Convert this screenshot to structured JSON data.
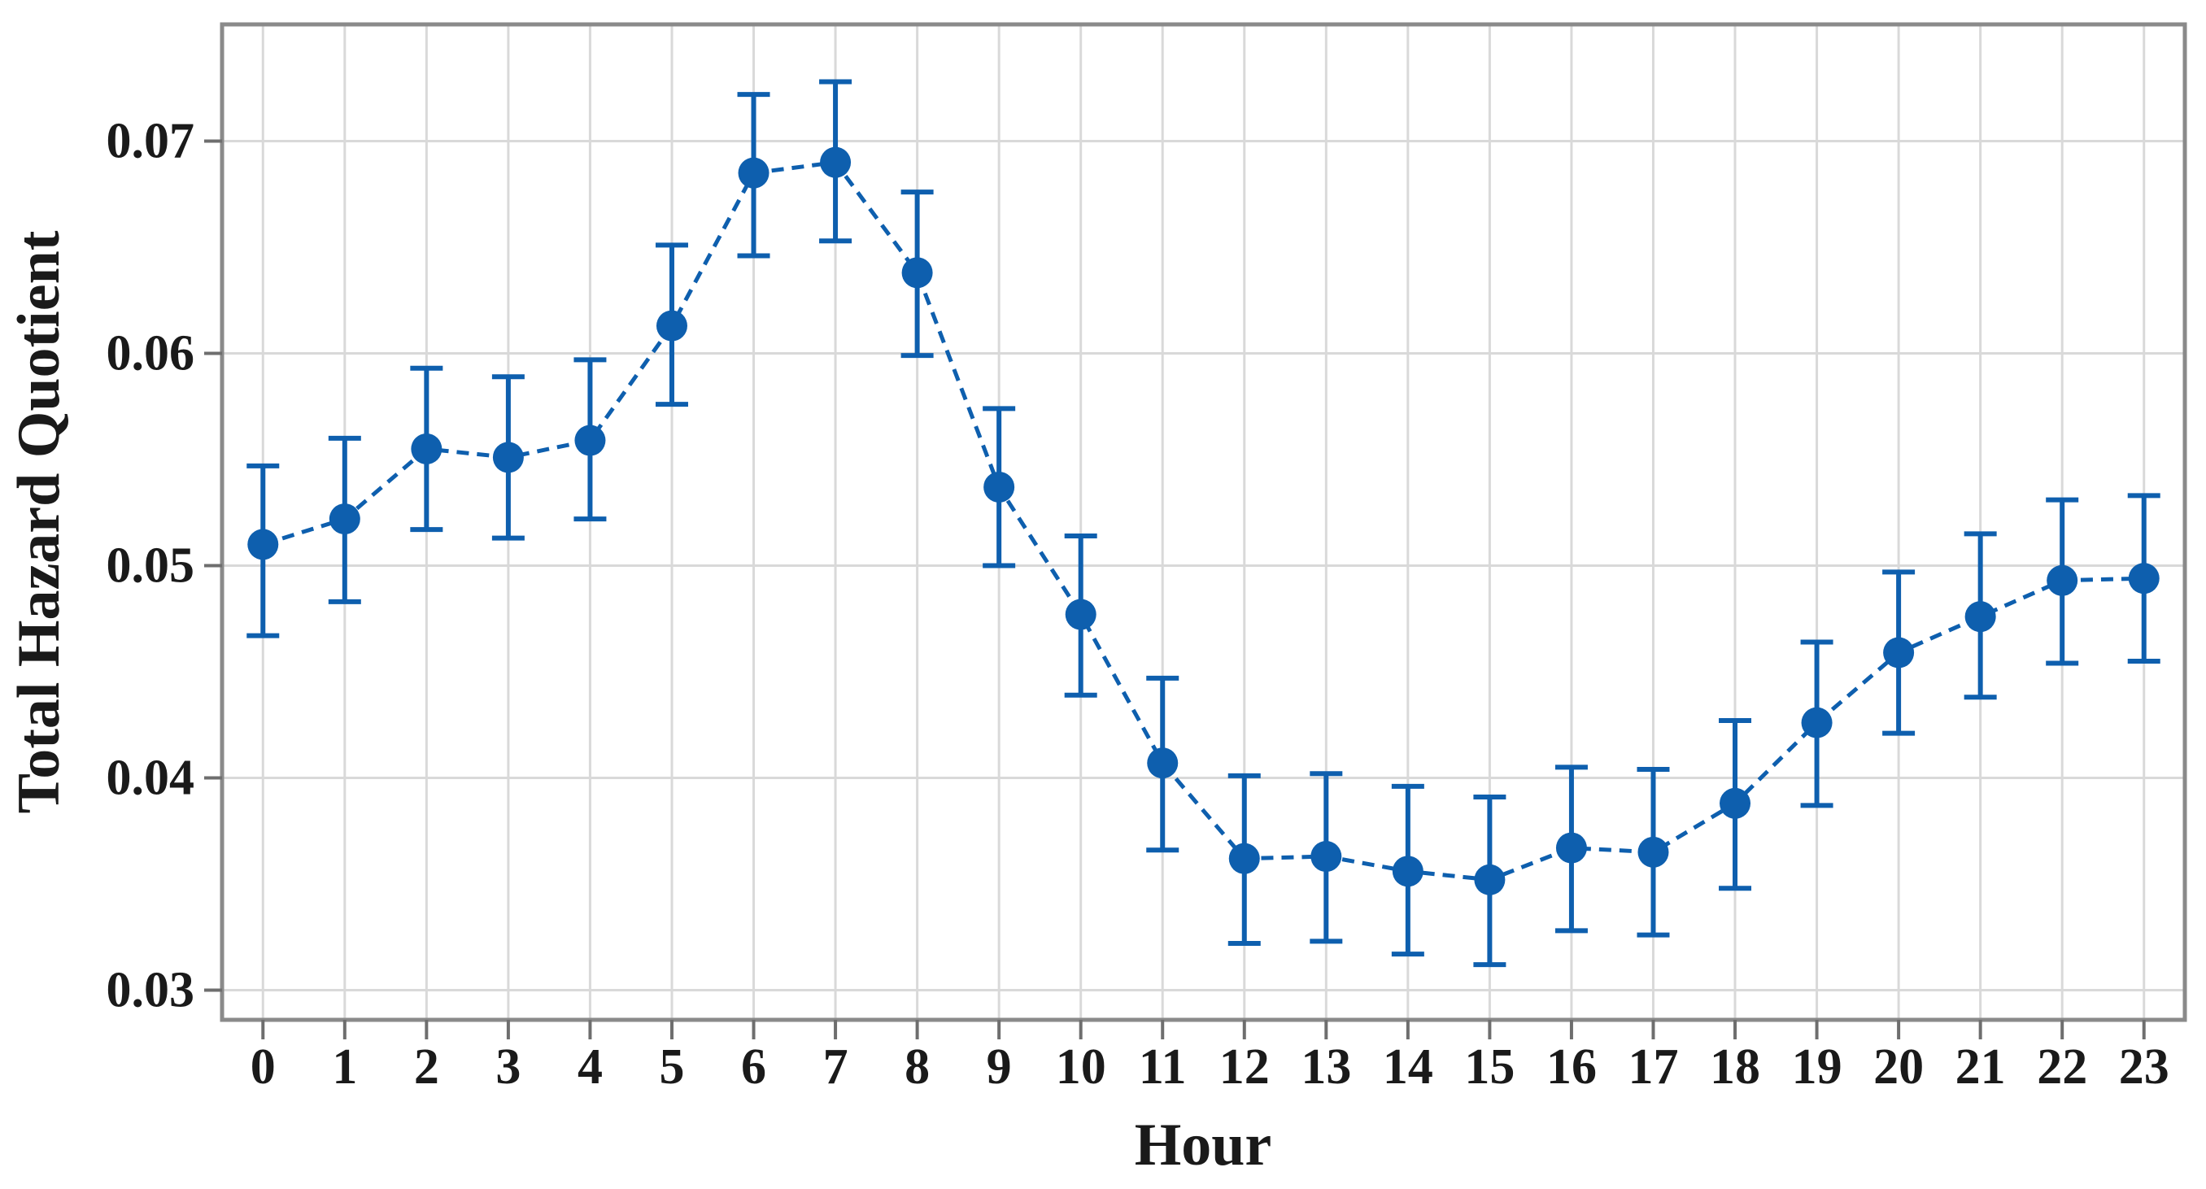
{
  "figure": {
    "background": "#ffffff"
  },
  "chart_data": {
    "type": "line",
    "title": "",
    "xlabel": "Hour",
    "ylabel": "Total Hazard Quotient",
    "categories": [
      "0",
      "1",
      "2",
      "3",
      "4",
      "5",
      "6",
      "7",
      "8",
      "9",
      "10",
      "11",
      "12",
      "13",
      "14",
      "15",
      "16",
      "17",
      "18",
      "19",
      "20",
      "21",
      "22",
      "23"
    ],
    "series": [
      {
        "name": "Total Hazard Quotient",
        "values": [
          0.051,
          0.0522,
          0.0555,
          0.0551,
          0.0559,
          0.0613,
          0.0685,
          0.069,
          0.0638,
          0.0537,
          0.0477,
          0.0407,
          0.0362,
          0.0363,
          0.0356,
          0.0352,
          0.0367,
          0.0365,
          0.0388,
          0.0426,
          0.0459,
          0.0476,
          0.0493,
          0.0494
        ],
        "err_low": [
          0.0467,
          0.0483,
          0.0517,
          0.0513,
          0.0522,
          0.0576,
          0.0646,
          0.0653,
          0.0599,
          0.05,
          0.0439,
          0.0366,
          0.0322,
          0.0323,
          0.0317,
          0.0312,
          0.0328,
          0.0326,
          0.0348,
          0.0387,
          0.0421,
          0.0438,
          0.0454,
          0.0455
        ],
        "err_high": [
          0.0547,
          0.056,
          0.0593,
          0.0589,
          0.0597,
          0.0651,
          0.0722,
          0.0728,
          0.0676,
          0.0574,
          0.0514,
          0.0447,
          0.0401,
          0.0402,
          0.0396,
          0.0391,
          0.0405,
          0.0404,
          0.0427,
          0.0464,
          0.0497,
          0.0515,
          0.0531,
          0.0533
        ]
      }
    ],
    "ylim": [
      0.0286,
      0.0755
    ],
    "yticks": {
      "values": [
        0.07,
        0.06,
        0.05,
        0.04,
        0.03
      ],
      "labels": [
        "0.07",
        "0.06",
        "0.05",
        "0.04",
        "0.03"
      ]
    },
    "grid": "both",
    "legend_position": "none",
    "marker": "circle",
    "line_style": "dashed",
    "error_bars": true,
    "colors": {
      "series": "#0e5fae",
      "grid": "#d9d9d9",
      "spine": "#8a8a8a",
      "tick": "#6e6e6e",
      "text": "#1a1a1a",
      "background": "#ffffff"
    }
  }
}
